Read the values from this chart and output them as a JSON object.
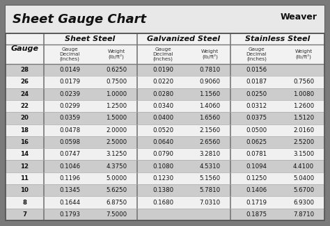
{
  "title": "Sheet Gauge Chart",
  "bg_outer": "#7a7a7a",
  "bg_inner": "#ffffff",
  "row_colors": [
    "#cccccc",
    "#f0f0f0"
  ],
  "gauges": [
    28,
    26,
    24,
    22,
    20,
    18,
    16,
    14,
    12,
    11,
    10,
    8,
    7
  ],
  "sheet_steel": [
    [
      "0.0149",
      "0.6250"
    ],
    [
      "0.0179",
      "0.7500"
    ],
    [
      "0.0239",
      "1.0000"
    ],
    [
      "0.0299",
      "1.2500"
    ],
    [
      "0.0359",
      "1.5000"
    ],
    [
      "0.0478",
      "2.0000"
    ],
    [
      "0.0598",
      "2.5000"
    ],
    [
      "0.0747",
      "3.1250"
    ],
    [
      "0.1046",
      "4.3750"
    ],
    [
      "0.1196",
      "5.0000"
    ],
    [
      "0.1345",
      "5.6250"
    ],
    [
      "0.1644",
      "6.8750"
    ],
    [
      "0.1793",
      "7.5000"
    ]
  ],
  "galvanized_steel": [
    [
      "0.0190",
      "0.7810"
    ],
    [
      "0.0220",
      "0.9060"
    ],
    [
      "0.0280",
      "1.1560"
    ],
    [
      "0.0340",
      "1.4060"
    ],
    [
      "0.0400",
      "1.6560"
    ],
    [
      "0.0520",
      "2.1560"
    ],
    [
      "0.0640",
      "2.6560"
    ],
    [
      "0.0790",
      "3.2810"
    ],
    [
      "0.1080",
      "4.5310"
    ],
    [
      "0.1230",
      "5.1560"
    ],
    [
      "0.1380",
      "5.7810"
    ],
    [
      "0.1680",
      "7.0310"
    ],
    [
      "",
      ""
    ]
  ],
  "stainless_steel": [
    [
      "0.0156",
      ""
    ],
    [
      "0.0187",
      "0.7560"
    ],
    [
      "0.0250",
      "1.0080"
    ],
    [
      "0.0312",
      "1.2600"
    ],
    [
      "0.0375",
      "1.5120"
    ],
    [
      "0.0500",
      "2.0160"
    ],
    [
      "0.0625",
      "2.5200"
    ],
    [
      "0.0781",
      "3.1500"
    ],
    [
      "0.1094",
      "4.4100"
    ],
    [
      "0.1250",
      "5.0400"
    ],
    [
      "0.1406",
      "5.6700"
    ],
    [
      "0.1719",
      "6.9300"
    ],
    [
      "0.1875",
      "7.8710"
    ]
  ]
}
